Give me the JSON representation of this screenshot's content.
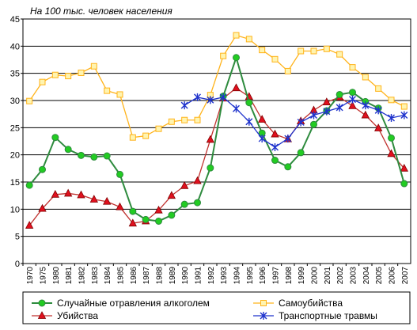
{
  "chart_data": {
    "type": "line",
    "title": "На 100 тыс. человек населения",
    "xlabel": "",
    "ylabel": "",
    "ylim": [
      0,
      45
    ],
    "yticks": [
      0,
      5,
      10,
      15,
      20,
      25,
      30,
      35,
      40,
      45
    ],
    "grid": true,
    "legend": "bottom",
    "categories": [
      "1970",
      "1975",
      "1980",
      "1981",
      "1982",
      "1983",
      "1984",
      "1985",
      "1986",
      "1987",
      "1988",
      "1989",
      "1990",
      "1991",
      "1992",
      "1993",
      "1994",
      "1995",
      "1996",
      "1997",
      "1998",
      "1999",
      "2000",
      "2001",
      "2002",
      "2003",
      "2004",
      "2005",
      "2006",
      "2007"
    ],
    "series": [
      {
        "name": "Случайные отравления алкоголем",
        "color": "#2e8b3e",
        "marker_color": "#22cc22",
        "marker": "circle",
        "values": [
          14.4,
          17.3,
          23.2,
          21.0,
          19.9,
          19.6,
          19.8,
          16.4,
          9.6,
          8.1,
          7.8,
          8.9,
          10.9,
          11.2,
          17.6,
          30.8,
          37.9,
          29.6,
          24.0,
          19.0,
          17.8,
          20.4,
          25.6,
          28.1,
          31.1,
          31.5,
          29.8,
          28.6,
          23.1,
          14.7
        ]
      },
      {
        "name": "Самоубийства",
        "color": "#ffb31a",
        "marker_color": "#fff4b0",
        "marker": "square",
        "values": [
          29.9,
          33.4,
          34.7,
          34.5,
          35.1,
          36.3,
          31.8,
          31.1,
          23.2,
          23.5,
          24.8,
          26.1,
          26.4,
          26.4,
          31.0,
          38.2,
          42.0,
          41.3,
          39.3,
          37.6,
          35.4,
          39.1,
          39.1,
          39.5,
          38.5,
          36.1,
          34.3,
          32.2,
          30.1,
          28.9
        ]
      },
      {
        "name": "Убийства",
        "color": "#c0312e",
        "marker_color": "#e0101e",
        "marker": "triangle",
        "values": [
          7.0,
          10.1,
          12.7,
          12.9,
          12.6,
          11.8,
          11.4,
          10.4,
          7.4,
          7.8,
          9.8,
          12.5,
          14.3,
          15.2,
          22.8,
          30.4,
          32.3,
          30.7,
          26.5,
          23.8,
          22.9,
          26.2,
          28.2,
          29.7,
          30.6,
          29.0,
          27.3,
          24.9,
          20.2,
          17.5
        ]
      },
      {
        "name": "Транспортные травмы",
        "color": "#1f33cc",
        "marker_color": "#1f33cc",
        "marker": "star",
        "values": [
          null,
          null,
          null,
          null,
          null,
          null,
          null,
          null,
          null,
          null,
          null,
          null,
          29.1,
          30.6,
          30.1,
          30.6,
          28.5,
          26.1,
          23.0,
          21.4,
          23.0,
          26.0,
          27.3,
          28.0,
          28.7,
          30.2,
          29.1,
          28.2,
          26.8,
          27.3
        ]
      }
    ]
  }
}
